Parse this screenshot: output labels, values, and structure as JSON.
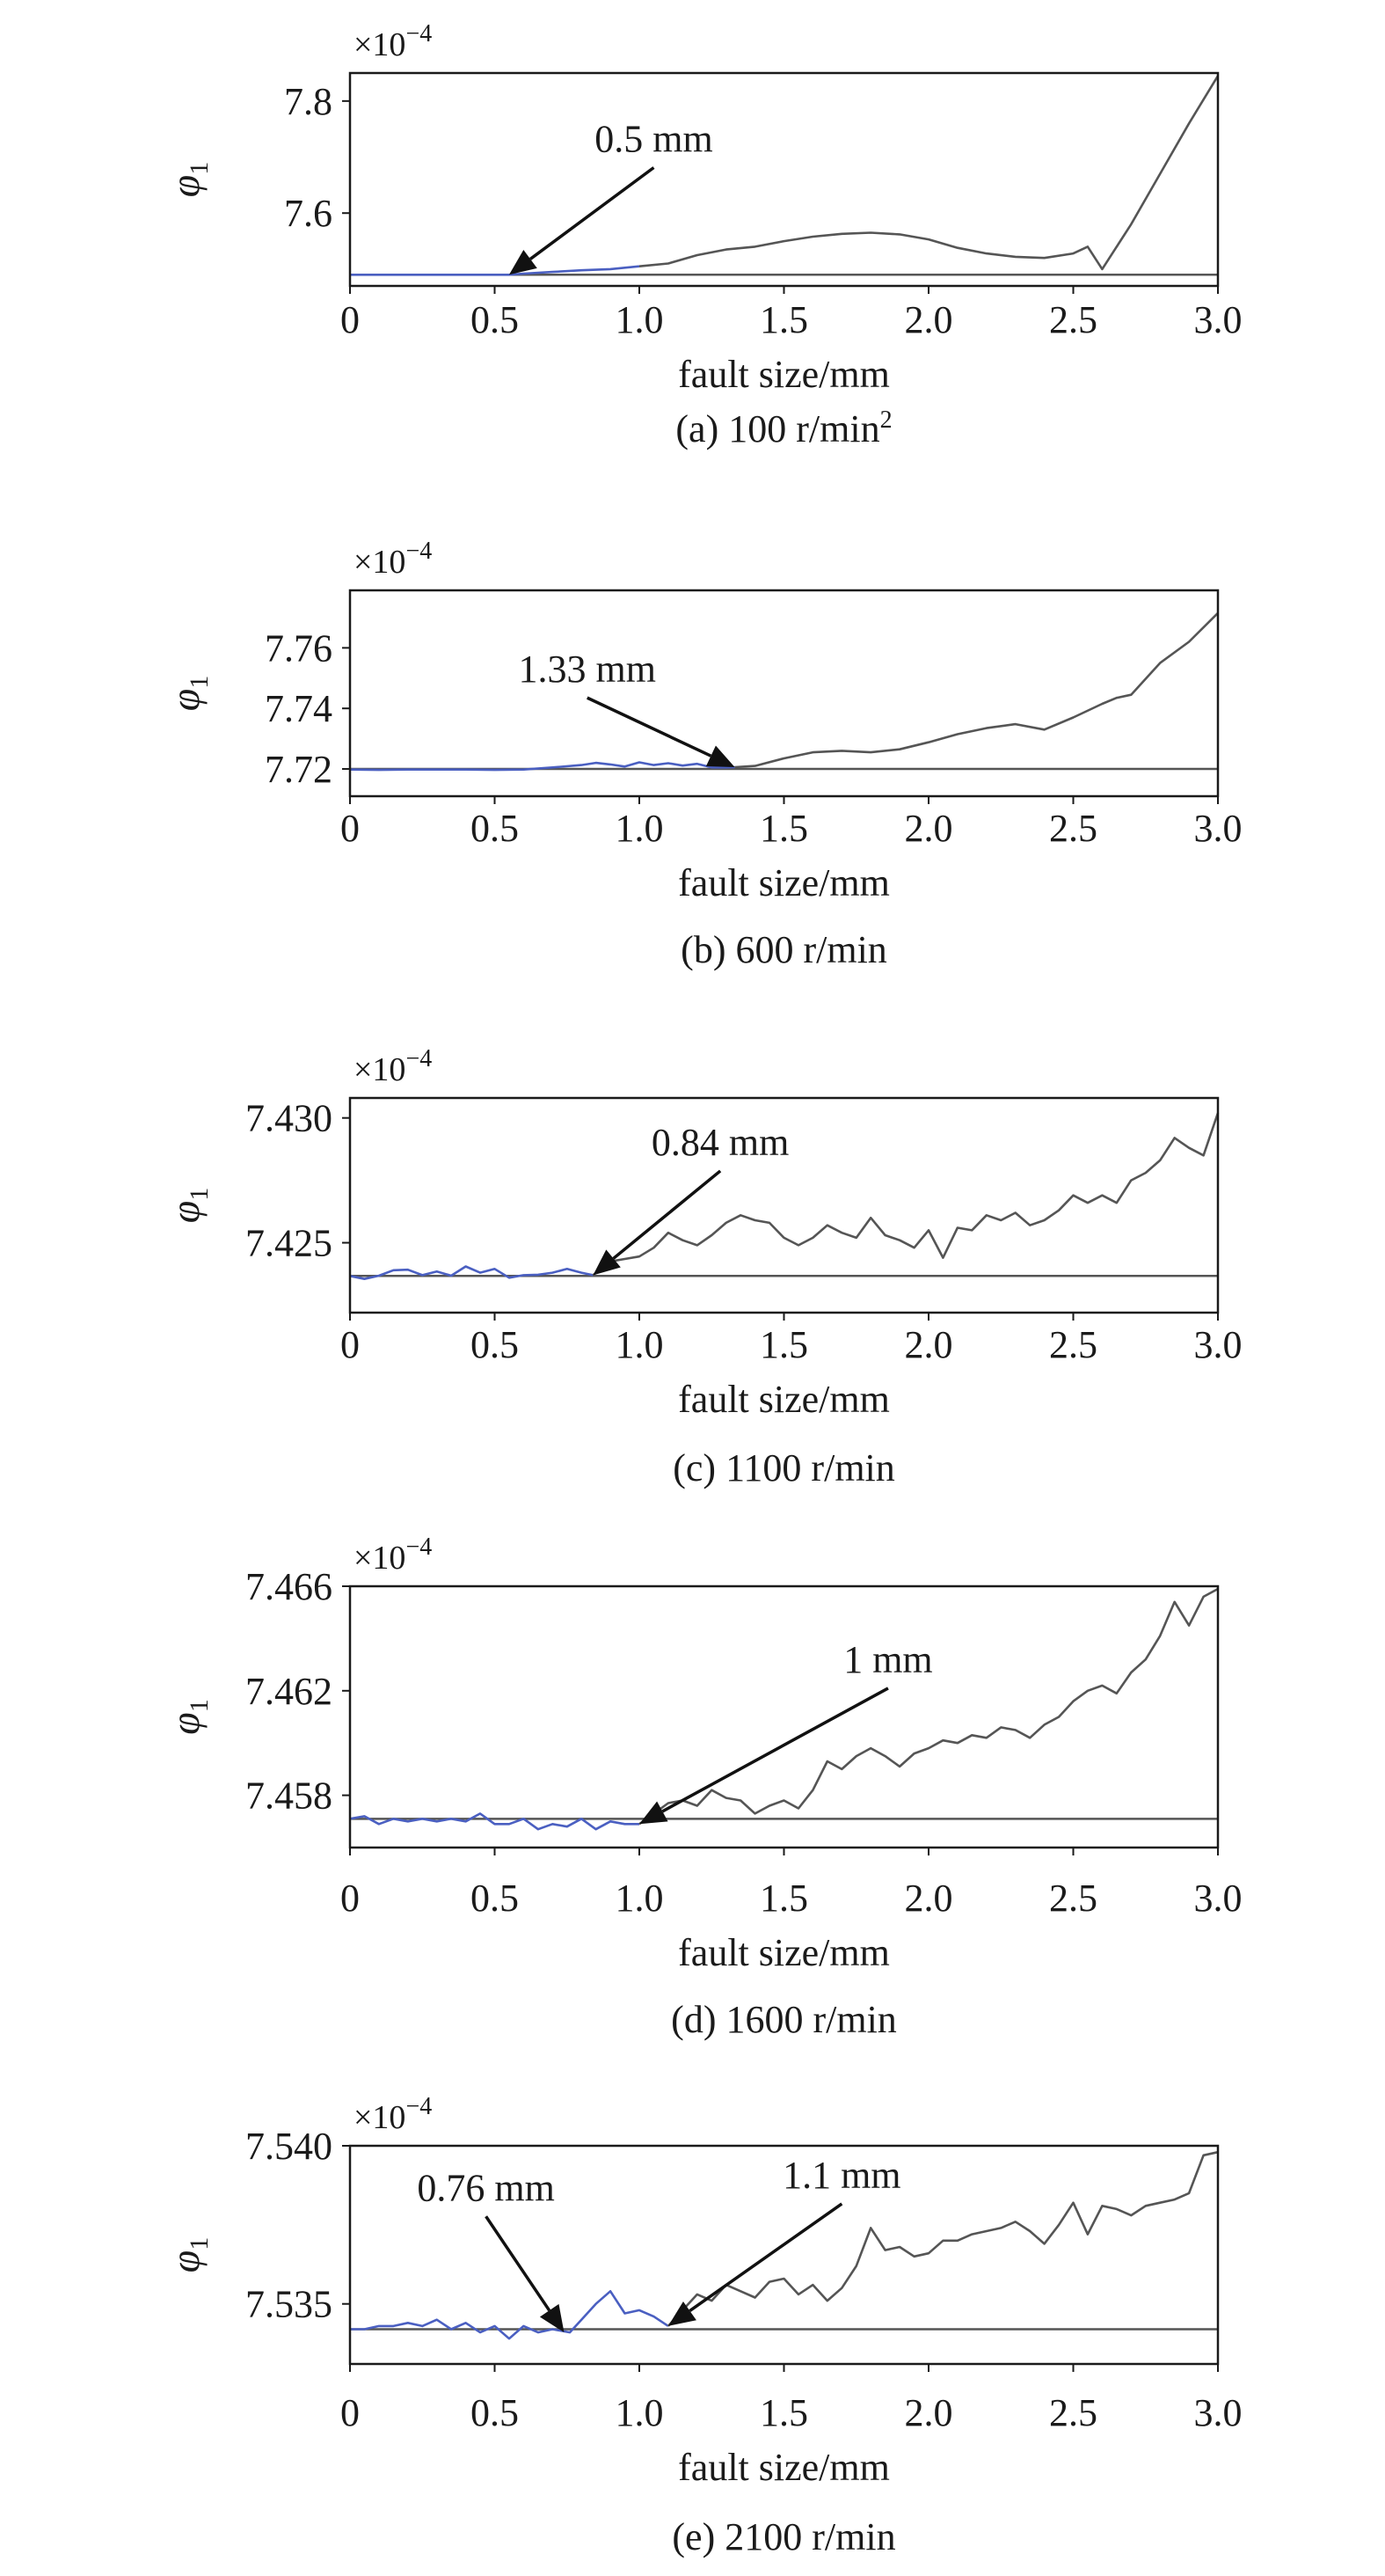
{
  "chart_data": [
    {
      "type": "line",
      "caption": "(a) 100 r/min",
      "caption_sup": "2",
      "xlabel": "fault size/mm",
      "ylabel": "φ",
      "ylabel_sub": "1",
      "sci_prefix": "×10",
      "sci_exp": "−4",
      "xlim": [
        0,
        3.0
      ],
      "ylim": [
        7.47,
        7.85
      ],
      "xticks": [
        0,
        0.5,
        1.0,
        1.5,
        2.0,
        2.5,
        3.0
      ],
      "xtick_labels": [
        "0",
        "0.5",
        "1.0",
        "1.5",
        "2.0",
        "2.5",
        "3.0"
      ],
      "yticks": [
        7.6,
        7.8
      ],
      "ytick_labels": [
        "7.6",
        "7.8"
      ],
      "baseline": 7.49,
      "colors": {
        "blue": "#4a5fc1",
        "gray": "#555555"
      },
      "split_x": 1.0,
      "x": [
        0,
        0.1,
        0.2,
        0.3,
        0.4,
        0.5,
        0.55,
        0.6,
        0.7,
        0.8,
        0.9,
        1.0,
        1.1,
        1.2,
        1.3,
        1.4,
        1.5,
        1.6,
        1.7,
        1.8,
        1.9,
        2.0,
        2.1,
        2.2,
        2.3,
        2.4,
        2.5,
        2.55,
        2.6,
        2.7,
        2.8,
        2.9,
        3.0
      ],
      "y": [
        7.49,
        7.49,
        7.49,
        7.49,
        7.49,
        7.49,
        7.49,
        7.492,
        7.495,
        7.498,
        7.5,
        7.505,
        7.51,
        7.525,
        7.535,
        7.54,
        7.55,
        7.558,
        7.563,
        7.565,
        7.562,
        7.553,
        7.538,
        7.528,
        7.522,
        7.52,
        7.528,
        7.54,
        7.5,
        7.58,
        7.67,
        7.76,
        7.845
      ],
      "annotations": [
        {
          "text": "0.5 mm",
          "x": 0.55,
          "y": 7.49,
          "tx": 1.05,
          "ty": 7.7
        }
      ]
    },
    {
      "type": "line",
      "caption": "(b) 600 r/min",
      "caption_sup": "",
      "xlabel": "fault size/mm",
      "ylabel": "φ",
      "ylabel_sub": "1",
      "sci_prefix": "×10",
      "sci_exp": "−4",
      "xlim": [
        0,
        3.0
      ],
      "ylim": [
        7.711,
        7.779
      ],
      "xticks": [
        0,
        0.5,
        1.0,
        1.5,
        2.0,
        2.5,
        3.0
      ],
      "xtick_labels": [
        "0",
        "0.5",
        "1.0",
        "1.5",
        "2.0",
        "2.5",
        "3.0"
      ],
      "yticks": [
        7.72,
        7.74,
        7.76
      ],
      "ytick_labels": [
        "7.72",
        "7.74",
        "7.76"
      ],
      "baseline": 7.72,
      "colors": {
        "blue": "#4a5fc1",
        "gray": "#555555"
      },
      "split_x": 1.33,
      "x": [
        0,
        0.1,
        0.2,
        0.3,
        0.4,
        0.5,
        0.6,
        0.7,
        0.8,
        0.85,
        0.9,
        0.95,
        1.0,
        1.05,
        1.1,
        1.15,
        1.2,
        1.25,
        1.3,
        1.33,
        1.4,
        1.5,
        1.6,
        1.7,
        1.8,
        1.9,
        2.0,
        2.1,
        2.2,
        2.3,
        2.4,
        2.5,
        2.6,
        2.65,
        2.7,
        2.8,
        2.9,
        3.0
      ],
      "y": [
        7.7198,
        7.7197,
        7.7198,
        7.7198,
        7.7198,
        7.7197,
        7.7198,
        7.7205,
        7.7213,
        7.722,
        7.7215,
        7.7208,
        7.7222,
        7.7213,
        7.7219,
        7.7211,
        7.7217,
        7.7205,
        7.7205,
        7.7206,
        7.721,
        7.7235,
        7.7255,
        7.726,
        7.7255,
        7.7265,
        7.7288,
        7.7315,
        7.7335,
        7.7348,
        7.733,
        7.737,
        7.7415,
        7.7435,
        7.7445,
        7.755,
        7.762,
        7.7715
      ],
      "annotations": [
        {
          "text": "1.33 mm",
          "x": 1.33,
          "y": 7.7206,
          "tx": 0.82,
          "ty": 7.747
        }
      ]
    },
    {
      "type": "line",
      "caption": "(c) 1100 r/min",
      "caption_sup": "",
      "xlabel": "fault size/mm",
      "ylabel": "φ",
      "ylabel_sub": "1",
      "sci_prefix": "×10",
      "sci_exp": "−4",
      "xlim": [
        0,
        3.0
      ],
      "ylim": [
        7.4222,
        7.4308
      ],
      "xticks": [
        0,
        0.5,
        1.0,
        1.5,
        2.0,
        2.5,
        3.0
      ],
      "xtick_labels": [
        "0",
        "0.5",
        "1.0",
        "1.5",
        "2.0",
        "2.5",
        "3.0"
      ],
      "yticks": [
        7.425,
        7.43
      ],
      "ytick_labels": [
        "7.425",
        "7.430"
      ],
      "baseline": 7.42367,
      "colors": {
        "blue": "#4a5fc1",
        "gray": "#555555"
      },
      "split_x": 0.84,
      "x": [
        0,
        0.05,
        0.1,
        0.15,
        0.2,
        0.25,
        0.3,
        0.35,
        0.4,
        0.45,
        0.5,
        0.55,
        0.6,
        0.65,
        0.7,
        0.75,
        0.8,
        0.84,
        0.9,
        0.95,
        1.0,
        1.05,
        1.1,
        1.15,
        1.2,
        1.25,
        1.3,
        1.35,
        1.4,
        1.45,
        1.5,
        1.55,
        1.6,
        1.65,
        1.7,
        1.75,
        1.8,
        1.85,
        1.9,
        1.95,
        2.0,
        2.05,
        2.1,
        2.15,
        2.2,
        2.25,
        2.3,
        2.35,
        2.4,
        2.45,
        2.5,
        2.55,
        2.6,
        2.65,
        2.7,
        2.75,
        2.8,
        2.85,
        2.9,
        2.95,
        3.0
      ],
      "y": [
        7.42367,
        7.42355,
        7.42368,
        7.4239,
        7.42392,
        7.4237,
        7.42385,
        7.42368,
        7.42405,
        7.4238,
        7.42395,
        7.4236,
        7.4237,
        7.42372,
        7.4238,
        7.42395,
        7.4238,
        7.4237,
        7.42425,
        7.42435,
        7.42445,
        7.4248,
        7.4254,
        7.4251,
        7.4249,
        7.4253,
        7.4258,
        7.4261,
        7.4259,
        7.4258,
        7.4252,
        7.4249,
        7.4252,
        7.4257,
        7.4254,
        7.4252,
        7.426,
        7.4253,
        7.4251,
        7.4248,
        7.4255,
        7.4244,
        7.4256,
        7.4255,
        7.4261,
        7.4259,
        7.4262,
        7.4257,
        7.4259,
        7.4263,
        7.4269,
        7.4266,
        7.4269,
        7.4266,
        7.4275,
        7.4278,
        7.4283,
        7.4292,
        7.4288,
        7.4285,
        7.4302
      ],
      "annotations": [
        {
          "text": "0.84 mm",
          "x": 0.84,
          "y": 7.4237,
          "tx": 1.28,
          "ty": 7.4283
        }
      ]
    },
    {
      "type": "line",
      "caption": "(d) 1600 r/min",
      "caption_sup": "",
      "xlabel": "fault size/mm",
      "ylabel": "φ",
      "ylabel_sub": "1",
      "sci_prefix": "×10",
      "sci_exp": "−4",
      "xlim": [
        0,
        3.0
      ],
      "ylim": [
        7.456,
        7.466
      ],
      "xticks": [
        0,
        0.5,
        1.0,
        1.5,
        2.0,
        2.5,
        3.0
      ],
      "xtick_labels": [
        "0",
        "0.5",
        "1.0",
        "1.5",
        "2.0",
        "2.5",
        "3.0"
      ],
      "yticks": [
        7.458,
        7.462,
        7.466
      ],
      "ytick_labels": [
        "7.458",
        "7.462",
        "7.466"
      ],
      "baseline": 7.4571,
      "colors": {
        "blue": "#4a5fc1",
        "gray": "#555555"
      },
      "split_x": 1.0,
      "x": [
        0,
        0.05,
        0.1,
        0.15,
        0.2,
        0.25,
        0.3,
        0.35,
        0.4,
        0.45,
        0.5,
        0.55,
        0.6,
        0.65,
        0.7,
        0.75,
        0.8,
        0.85,
        0.9,
        0.95,
        1.0,
        1.05,
        1.1,
        1.15,
        1.2,
        1.25,
        1.3,
        1.35,
        1.4,
        1.45,
        1.5,
        1.55,
        1.6,
        1.65,
        1.7,
        1.75,
        1.8,
        1.85,
        1.9,
        1.95,
        2.0,
        2.05,
        2.1,
        2.15,
        2.2,
        2.25,
        2.3,
        2.35,
        2.4,
        2.45,
        2.5,
        2.55,
        2.6,
        2.65,
        2.7,
        2.75,
        2.8,
        2.85,
        2.9,
        2.95,
        3.0
      ],
      "y": [
        7.4571,
        7.4572,
        7.4569,
        7.4571,
        7.457,
        7.4571,
        7.457,
        7.4571,
        7.457,
        7.4573,
        7.4569,
        7.4569,
        7.4571,
        7.4567,
        7.4569,
        7.4568,
        7.4571,
        7.4567,
        7.457,
        7.4569,
        7.4569,
        7.4573,
        7.4577,
        7.4578,
        7.4576,
        7.4582,
        7.4579,
        7.4578,
        7.4573,
        7.4576,
        7.4578,
        7.4575,
        7.4582,
        7.4593,
        7.459,
        7.4595,
        7.4598,
        7.4595,
        7.4591,
        7.4596,
        7.4598,
        7.4601,
        7.46,
        7.4603,
        7.4602,
        7.4606,
        7.4605,
        7.4602,
        7.4607,
        7.461,
        7.4616,
        7.462,
        7.4622,
        7.4619,
        7.4627,
        7.4632,
        7.4641,
        7.4654,
        7.4645,
        7.4656,
        7.4659
      ],
      "annotations": [
        {
          "text": "1 mm",
          "x": 1.0,
          "y": 7.4569,
          "tx": 1.86,
          "ty": 7.4625
        }
      ]
    },
    {
      "type": "line",
      "caption": "(e) 2100 r/min",
      "caption_sup": "",
      "xlabel": "fault size/mm",
      "ylabel": "φ",
      "ylabel_sub": "1",
      "sci_prefix": "×10",
      "sci_exp": "−4",
      "xlim": [
        0,
        3.0
      ],
      "ylim": [
        7.5331,
        7.54
      ],
      "xticks": [
        0,
        0.5,
        1.0,
        1.5,
        2.0,
        2.5,
        3.0
      ],
      "xtick_labels": [
        "0",
        "0.5",
        "1.0",
        "1.5",
        "2.0",
        "2.5",
        "3.0"
      ],
      "yticks": [
        7.535,
        7.54
      ],
      "ytick_labels": [
        "7.535",
        "7.540"
      ],
      "baseline": 7.5342,
      "colors": {
        "blue": "#4a5fc1",
        "gray": "#555555"
      },
      "split_x": 1.1,
      "x": [
        0,
        0.05,
        0.1,
        0.15,
        0.2,
        0.25,
        0.3,
        0.35,
        0.4,
        0.45,
        0.5,
        0.55,
        0.6,
        0.65,
        0.7,
        0.76,
        0.8,
        0.85,
        0.9,
        0.95,
        1.0,
        1.05,
        1.1,
        1.15,
        1.2,
        1.25,
        1.3,
        1.35,
        1.4,
        1.45,
        1.5,
        1.55,
        1.6,
        1.65,
        1.7,
        1.75,
        1.8,
        1.85,
        1.9,
        1.95,
        2.0,
        2.05,
        2.1,
        2.15,
        2.2,
        2.25,
        2.3,
        2.35,
        2.4,
        2.45,
        2.5,
        2.55,
        2.6,
        2.65,
        2.7,
        2.75,
        2.8,
        2.85,
        2.9,
        2.95,
        3.0
      ],
      "y": [
        7.5342,
        7.5342,
        7.5343,
        7.5343,
        7.5344,
        7.5343,
        7.5345,
        7.5342,
        7.5344,
        7.5341,
        7.5343,
        7.5339,
        7.5343,
        7.5341,
        7.5342,
        7.5341,
        7.5345,
        7.535,
        7.5354,
        7.5347,
        7.5348,
        7.5346,
        7.5343,
        7.5348,
        7.5353,
        7.5351,
        7.5356,
        7.5354,
        7.5352,
        7.5357,
        7.5358,
        7.5353,
        7.5356,
        7.5351,
        7.5355,
        7.5362,
        7.5374,
        7.5367,
        7.5368,
        7.5365,
        7.5366,
        7.537,
        7.537,
        7.5372,
        7.5373,
        7.5374,
        7.5376,
        7.5373,
        7.5369,
        7.5375,
        7.5382,
        7.5372,
        7.5381,
        7.538,
        7.5378,
        7.5381,
        7.5382,
        7.5383,
        7.5385,
        7.5397,
        7.5398
      ],
      "annotations": [
        {
          "text": "0.76 mm",
          "x": 0.74,
          "y": 7.5341,
          "tx": 0.47,
          "ty": 7.5381
        },
        {
          "text": "1.1 mm",
          "x": 1.1,
          "y": 7.5343,
          "tx": 1.7,
          "ty": 7.5385
        }
      ]
    }
  ]
}
